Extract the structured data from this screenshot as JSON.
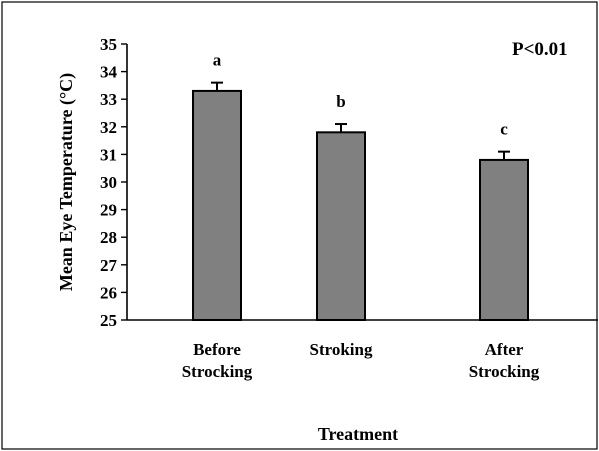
{
  "chart_data": {
    "type": "bar",
    "title": "",
    "xlabel": "Treatment",
    "ylabel": "Mean  Eye Temperature (°C)",
    "ylim": [
      25,
      35
    ],
    "yticks": [
      25,
      26,
      27,
      28,
      29,
      30,
      31,
      32,
      33,
      34,
      35
    ],
    "categories": [
      [
        "Before",
        "Strocking"
      ],
      [
        "Stroking"
      ],
      [
        "After",
        "Strocking"
      ]
    ],
    "values": [
      33.3,
      31.8,
      30.8
    ],
    "errors": [
      0.3,
      0.3,
      0.3
    ],
    "significance_letters": [
      "a",
      "b",
      "c"
    ],
    "annotation": "P<0.01",
    "bar_color": "#808080",
    "grid": false,
    "legend": false
  }
}
